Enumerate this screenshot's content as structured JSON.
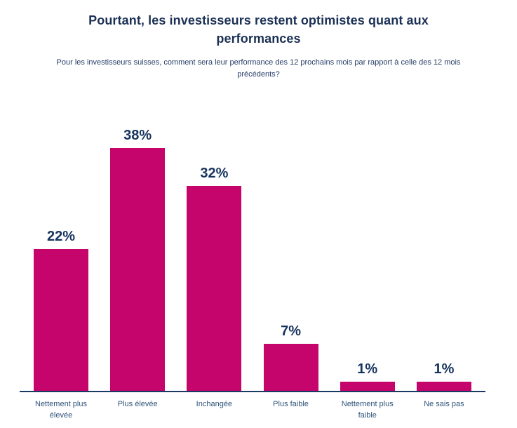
{
  "header": {
    "title": "Pourtant, les investisseurs restent optimistes quant aux performances",
    "subtitle": "Pour les investisseurs suisses, comment sera leur performance des 12 prochains mois par rapport à celle des 12 mois précédents?"
  },
  "chart_data": {
    "type": "bar",
    "title": "Pourtant, les investisseurs restent optimistes quant aux performances",
    "subtitle": "Pour les investisseurs suisses, comment sera leur performance des 12 prochains mois par rapport à celle des 12 mois précédents?",
    "categories": [
      "Nettement plus élevée",
      "Plus élevée",
      "Inchangée",
      "Plus faible",
      "Nettement plus faible",
      "Ne sais pas"
    ],
    "values": [
      22,
      38,
      32,
      7,
      1,
      1
    ],
    "value_labels": [
      "22%",
      "38%",
      "32%",
      "7%",
      "1%",
      "1%"
    ],
    "xlabel": "",
    "ylabel": "",
    "ylim": [
      0,
      40
    ],
    "grid": false,
    "legend": false,
    "colors": {
      "bar_fill": "#c5056b",
      "axis_line": "#1a3a66",
      "title_text": "#1b3055",
      "value_label_text": "#16335e",
      "category_label_text": "#2e5379"
    }
  }
}
